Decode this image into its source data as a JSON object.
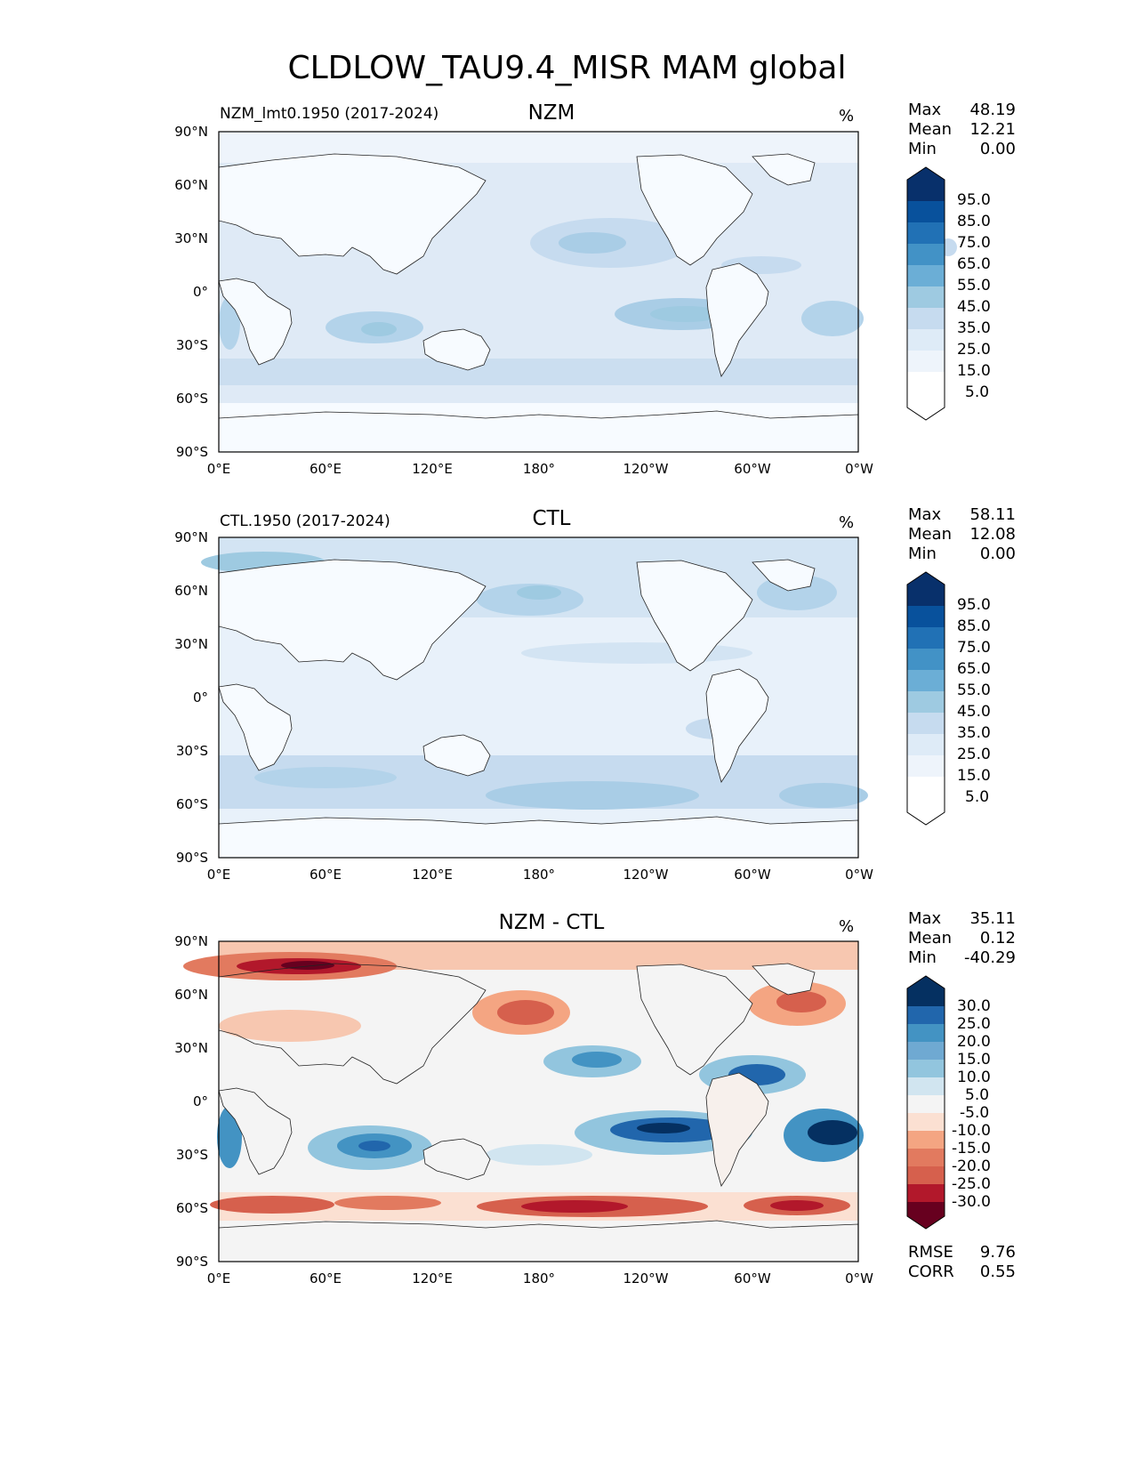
{
  "title": "CLDLOW_TAU9.4_MISR MAM global",
  "axes": {
    "lat_ticks": [
      "90°N",
      "60°N",
      "30°N",
      "0°",
      "30°S",
      "60°S",
      "90°S"
    ],
    "lon_ticks": [
      "0°E",
      "60°E",
      "120°E",
      "180°",
      "120°W",
      "60°W",
      "0°W"
    ]
  },
  "panels": [
    {
      "subtitle": "NZM",
      "left_label": "NZM_lmt0.1950 (2017-2024)",
      "units": "%",
      "stats": [
        {
          "k": "Max",
          "v": "48.19"
        },
        {
          "k": "Mean",
          "v": "12.21"
        },
        {
          "k": "Min",
          "v": "0.00"
        }
      ],
      "colorbar_labels": [
        "95.0",
        "85.0",
        "75.0",
        "65.0",
        "55.0",
        "45.0",
        "35.0",
        "25.0",
        "15.0",
        "5.0"
      ],
      "colors": [
        "#f7fbff",
        "#deebf7",
        "#c6dbef",
        "#9ecae1",
        "#6baed6",
        "#4292c6",
        "#2171b5",
        "#08519c",
        "#08306b"
      ]
    },
    {
      "subtitle": "CTL",
      "left_label": "CTL.1950 (2017-2024)",
      "units": "%",
      "stats": [
        {
          "k": "Max",
          "v": "58.11"
        },
        {
          "k": "Mean",
          "v": "12.08"
        },
        {
          "k": "Min",
          "v": "0.00"
        }
      ],
      "colorbar_labels": [
        "95.0",
        "85.0",
        "75.0",
        "65.0",
        "55.0",
        "45.0",
        "35.0",
        "25.0",
        "15.0",
        "5.0"
      ]
    },
    {
      "subtitle": "NZM - CTL",
      "left_label": "",
      "units": "%",
      "stats": [
        {
          "k": "Max",
          "v": "35.11"
        },
        {
          "k": "Mean",
          "v": "0.12"
        },
        {
          "k": "Min",
          "v": "-40.29"
        }
      ],
      "colorbar_labels": [
        "30.0",
        "25.0",
        "20.0",
        "15.0",
        "10.0",
        "5.0",
        "-5.0",
        "-10.0",
        "-15.0",
        "-20.0",
        "-25.0",
        "-30.0"
      ],
      "metrics": [
        {
          "k": "RMSE",
          "v": "9.76"
        },
        {
          "k": "CORR",
          "v": "0.55"
        }
      ]
    }
  ]
}
